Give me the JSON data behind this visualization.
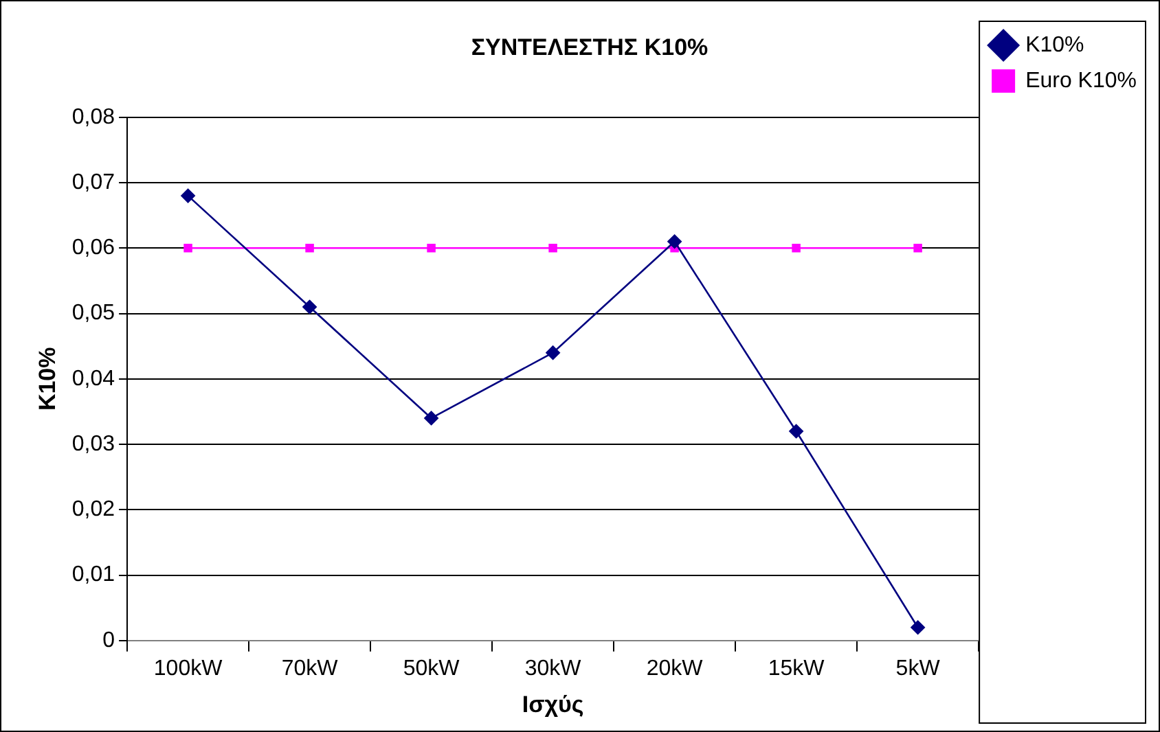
{
  "chart_data": {
    "type": "line",
    "title": "ΣΥΝΤΕΛΕΣΤΗΣ K10%",
    "xlabel": "Ισχύς",
    "ylabel": "K10%",
    "categories": [
      "100kW",
      "70kW",
      "50kW",
      "30kW",
      "20kW",
      "15kW",
      "5kW"
    ],
    "series": [
      {
        "name": "K10%",
        "color": "#000080",
        "marker": "diamond",
        "values": [
          0.068,
          0.051,
          0.034,
          0.044,
          0.061,
          0.032,
          0.002
        ]
      },
      {
        "name": "Euro K10%",
        "color": "#ff00ff",
        "marker": "square",
        "values": [
          0.06,
          0.06,
          0.06,
          0.06,
          0.06,
          0.06,
          0.06
        ]
      }
    ],
    "ylim": [
      0,
      0.08
    ],
    "yticks": [
      0,
      {
        "value": 0.01,
        "label": "0,01"
      },
      {
        "value": 0.02,
        "label": "0,02"
      },
      {
        "value": 0.03,
        "label": "0,03"
      },
      {
        "value": 0.04,
        "label": "0,04"
      },
      {
        "value": 0.05,
        "label": "0,05"
      },
      {
        "value": 0.06,
        "label": "0,06"
      },
      {
        "value": 0.07,
        "label": "0,07"
      },
      {
        "value": 0.08,
        "label": "0,08"
      }
    ],
    "grid": "y",
    "legend": "right",
    "line_style": "solid"
  }
}
